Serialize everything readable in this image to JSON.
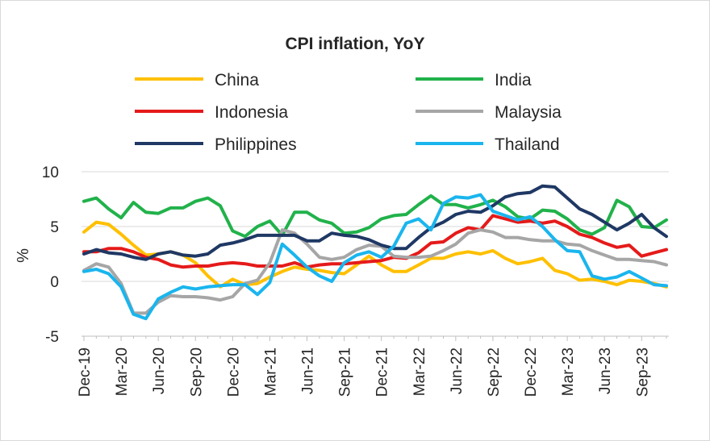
{
  "chart_data": {
    "type": "line",
    "title": "CPI inflation, YoY",
    "ylabel": "%",
    "xlabel": "",
    "ylim": [
      -5,
      10
    ],
    "yticks": [
      10,
      5,
      0,
      -5
    ],
    "grid": "horizontal",
    "legend_position": "top",
    "categories": [
      "Dec-19",
      "Jan-20",
      "Feb-20",
      "Mar-20",
      "Apr-20",
      "May-20",
      "Jun-20",
      "Jul-20",
      "Aug-20",
      "Sep-20",
      "Oct-20",
      "Nov-20",
      "Dec-20",
      "Jan-21",
      "Feb-21",
      "Mar-21",
      "Apr-21",
      "May-21",
      "Jun-21",
      "Jul-21",
      "Aug-21",
      "Sep-21",
      "Oct-21",
      "Nov-21",
      "Dec-21",
      "Jan-22",
      "Feb-22",
      "Mar-22",
      "Apr-22",
      "May-22",
      "Jun-22",
      "Jul-22",
      "Aug-22",
      "Sep-22",
      "Oct-22",
      "Nov-22",
      "Dec-22",
      "Jan-23",
      "Feb-23",
      "Mar-23",
      "Apr-23",
      "May-23",
      "Jun-23",
      "Jul-23",
      "Aug-23",
      "Sep-23",
      "Oct-23",
      "Nov-23"
    ],
    "xtick_labels": [
      "Dec-19",
      "Mar-20",
      "Jun-20",
      "Sep-20",
      "Dec-20",
      "Mar-21",
      "Jun-21",
      "Sep-21",
      "Dec-21",
      "Mar-22",
      "Jun-22",
      "Sep-22",
      "Dec-22",
      "Mar-23",
      "Jun-23",
      "Sep-23"
    ],
    "series": [
      {
        "name": "China",
        "color": "#ffc000",
        "values": [
          4.5,
          5.4,
          5.2,
          4.3,
          3.3,
          2.4,
          2.5,
          2.7,
          2.4,
          1.7,
          0.5,
          -0.5,
          0.2,
          -0.3,
          -0.2,
          0.4,
          0.9,
          1.3,
          1.1,
          1.0,
          0.8,
          0.7,
          1.5,
          2.3,
          1.5,
          0.9,
          0.9,
          1.5,
          2.1,
          2.1,
          2.5,
          2.7,
          2.5,
          2.8,
          2.1,
          1.6,
          1.8,
          2.1,
          1.0,
          0.7,
          0.1,
          0.2,
          0.0,
          -0.3,
          0.1,
          0.0,
          -0.2,
          -0.5
        ]
      },
      {
        "name": "India",
        "color": "#21b24b",
        "values": [
          7.3,
          7.6,
          6.6,
          5.8,
          7.2,
          6.3,
          6.2,
          6.7,
          6.7,
          7.3,
          7.6,
          6.9,
          4.6,
          4.1,
          5.0,
          5.5,
          4.2,
          6.3,
          6.3,
          5.6,
          5.3,
          4.4,
          4.5,
          4.9,
          5.7,
          6.0,
          6.1,
          7.0,
          7.8,
          7.0,
          7.0,
          6.7,
          7.0,
          7.4,
          6.8,
          5.9,
          5.7,
          6.5,
          6.4,
          5.7,
          4.7,
          4.3,
          4.9,
          7.4,
          6.8,
          5.0,
          4.9,
          5.6
        ]
      },
      {
        "name": "Indonesia",
        "color": "#e51a1a",
        "values": [
          2.7,
          2.7,
          3.0,
          3.0,
          2.7,
          2.2,
          2.0,
          1.5,
          1.3,
          1.4,
          1.4,
          1.6,
          1.7,
          1.6,
          1.4,
          1.4,
          1.4,
          1.7,
          1.3,
          1.5,
          1.6,
          1.6,
          1.7,
          1.8,
          1.9,
          2.2,
          2.1,
          2.6,
          3.5,
          3.6,
          4.4,
          4.9,
          4.7,
          6.0,
          5.7,
          5.4,
          5.5,
          5.3,
          5.5,
          5.0,
          4.3,
          4.0,
          3.5,
          3.1,
          3.3,
          2.3,
          2.6,
          2.9
        ]
      },
      {
        "name": "Malaysia",
        "color": "#a6a6a6",
        "values": [
          1.0,
          1.6,
          1.3,
          -0.2,
          -2.9,
          -2.9,
          -1.9,
          -1.3,
          -1.4,
          -1.4,
          -1.5,
          -1.7,
          -1.4,
          -0.2,
          0.1,
          1.7,
          4.7,
          4.4,
          3.4,
          2.2,
          2.0,
          2.2,
          2.9,
          3.3,
          3.2,
          2.3,
          2.2,
          2.2,
          2.3,
          2.8,
          3.4,
          4.4,
          4.7,
          4.5,
          4.0,
          4.0,
          3.8,
          3.7,
          3.7,
          3.4,
          3.3,
          2.8,
          2.4,
          2.0,
          2.0,
          1.9,
          1.8,
          1.5
        ]
      },
      {
        "name": "Philippines",
        "color": "#1f3864",
        "values": [
          2.5,
          2.9,
          2.6,
          2.5,
          2.2,
          2.0,
          2.5,
          2.7,
          2.4,
          2.3,
          2.5,
          3.3,
          3.5,
          3.8,
          4.2,
          4.2,
          4.2,
          4.2,
          3.7,
          3.7,
          4.4,
          4.2,
          4.1,
          3.8,
          3.3,
          3.0,
          3.0,
          4.0,
          4.9,
          5.4,
          6.1,
          6.4,
          6.3,
          6.9,
          7.7,
          8.0,
          8.1,
          8.7,
          8.6,
          7.6,
          6.6,
          6.1,
          5.4,
          4.7,
          5.3,
          6.1,
          4.9,
          4.1
        ]
      },
      {
        "name": "Thailand",
        "color": "#1ab5ee",
        "values": [
          0.9,
          1.1,
          0.7,
          -0.5,
          -3.0,
          -3.4,
          -1.6,
          -1.0,
          -0.5,
          -0.7,
          -0.5,
          -0.4,
          -0.3,
          -0.3,
          -1.2,
          -0.1,
          3.4,
          2.4,
          1.3,
          0.5,
          0.0,
          1.7,
          2.4,
          2.7,
          2.2,
          3.2,
          5.3,
          5.7,
          4.7,
          7.1,
          7.7,
          7.6,
          7.9,
          6.4,
          6.0,
          5.6,
          5.9,
          5.0,
          3.8,
          2.8,
          2.7,
          0.5,
          0.2,
          0.4,
          0.9,
          0.3,
          -0.3,
          -0.4
        ]
      }
    ]
  }
}
